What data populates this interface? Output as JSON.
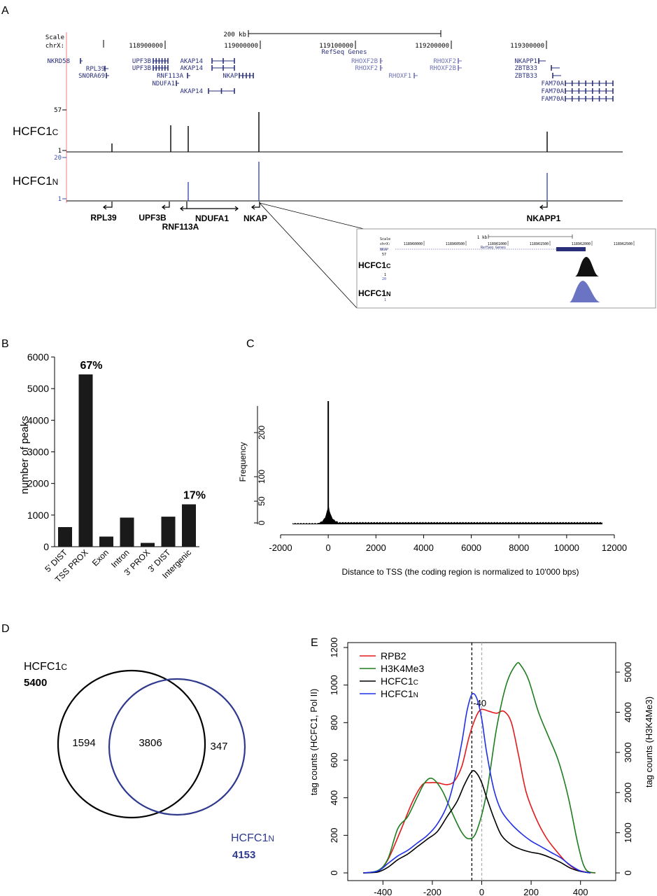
{
  "panels": {
    "a": "A",
    "b": "B",
    "c": "C",
    "d": "D",
    "e": "E"
  },
  "colors": {
    "gene": "#2a2f7a",
    "genelight": "#6f73b5",
    "track_n": "#4050b0",
    "red": "#e31a1c",
    "green": "#1e7d1e",
    "blue": "#1f30e6",
    "venn_n": "#2f3a8f",
    "peak_n": "#6a74c2"
  },
  "a": {
    "scale_label": "Scale",
    "chr_label": "chrX:",
    "scale_bar": "200 kb",
    "coords": [
      "118900000",
      "119000000",
      "119100000",
      "119200000",
      "119300000"
    ],
    "refseq": "RefSeq Genes",
    "genes": [
      {
        "t": "NKRD58"
      },
      {
        "t": "RPL39"
      },
      {
        "t": "SNORA69"
      },
      {
        "t": "UPF3B"
      },
      {
        "t": "UPF3B"
      },
      {
        "t": "AKAP14"
      },
      {
        "t": "AKAP14"
      },
      {
        "t": "RNF113A"
      },
      {
        "t": "NKAP"
      },
      {
        "t": "NDUFA1"
      },
      {
        "t": "AKAP14"
      },
      {
        "t": "RHOXF2B"
      },
      {
        "t": "RHOXF2"
      },
      {
        "t": "RHOXF1"
      },
      {
        "t": "RHOXF2"
      },
      {
        "t": "RHOXF2B"
      },
      {
        "t": "NKAPP1"
      },
      {
        "t": "ZBTB33"
      },
      {
        "t": "ZBTB33"
      },
      {
        "t": "FAM70A"
      },
      {
        "t": "FAM70A"
      },
      {
        "t": "FAM70A"
      }
    ],
    "track_c": {
      "name": "HCFC1",
      "sub": "C",
      "max": "57",
      "min": "1"
    },
    "track_n": {
      "name": "HCFC1",
      "sub": "N",
      "max": "20",
      "min": "1"
    },
    "bottom_genes": [
      "RPL39",
      "UPF3B",
      "RNF113A",
      "NDUFA1",
      "NKAP",
      "NKAPP1"
    ],
    "inset": {
      "scale": "Scale",
      "chr": "chrX:",
      "bar": "1 kb",
      "coords": [
        "118960000",
        "118960500",
        "118961000",
        "118961500",
        "118962000",
        "118962500"
      ],
      "refseq": "RefSeq Genes",
      "gene": "NKAP",
      "max_c": "57",
      "min_c": "1",
      "max_n": "20",
      "min_n": "1",
      "track_c": {
        "name": "HCFC1",
        "sub": "C"
      },
      "track_n": {
        "name": "HCFC1",
        "sub": "N"
      }
    }
  },
  "chart_data": [
    {
      "panel": "B",
      "type": "bar",
      "categories": [
        "5' DIST",
        "TSS PROX",
        "Exon",
        "Intron",
        "3' PROX",
        "3' DIST",
        "Intergenic"
      ],
      "values": [
        620,
        5450,
        320,
        920,
        120,
        950,
        1340
      ],
      "ylabel": "number of peaks",
      "ylim": [
        0,
        6000
      ],
      "yticks": [
        "0",
        "1000",
        "2000",
        "3000",
        "4000",
        "5000",
        "6000"
      ],
      "annotations": [
        {
          "category": "TSS PROX",
          "text": "67%"
        },
        {
          "category": "Intergenic",
          "text": "17%"
        }
      ]
    },
    {
      "panel": "C",
      "type": "bar",
      "xlabel": "Distance to TSS (the coding region is normalized to 10'000 bps)",
      "ylabel": "Frequency",
      "xticks": [
        "-2000",
        "0",
        "2000",
        "4000",
        "6000",
        "8000",
        "10000",
        "12000"
      ],
      "yticks": [
        "0",
        "50",
        "100",
        "200"
      ],
      "xlim": [
        -2000,
        12000
      ],
      "ylim": [
        0,
        260
      ],
      "peak": {
        "x": 0,
        "y": 260
      },
      "baseline": 3
    },
    {
      "panel": "D",
      "type": "venn",
      "sets": [
        {
          "name": "HCFC1",
          "sub": "C",
          "total": "5400"
        },
        {
          "name": "HCFC1",
          "sub": "N",
          "total": "4153"
        }
      ],
      "regions": {
        "only_c": "1594",
        "both": "3806",
        "only_n": "347"
      }
    },
    {
      "panel": "E",
      "type": "line",
      "xticks": [
        "-400",
        "-200",
        "0",
        "200",
        "400"
      ],
      "ylabel_left": "tag counts (HCFC1, Pol II)",
      "ylabel_right": "tag counts (H3K4Me3)",
      "yticks_left": [
        "0",
        "200",
        "400",
        "600",
        "800",
        "1000",
        "1200"
      ],
      "yticks_right": [
        "0",
        "1000",
        "2000",
        "3000",
        "4000",
        "5000"
      ],
      "xlim": [
        -500,
        500
      ],
      "ylim_left": [
        0,
        1200
      ],
      "ylim_right": [
        0,
        5500
      ],
      "marker_label": "-40",
      "series": [
        {
          "name": "RPB2",
          "x": [
            -480,
            -420,
            -380,
            -330,
            -280,
            -240,
            -210,
            -180,
            -140,
            -110,
            -80,
            -50,
            -20,
            0,
            30,
            60,
            90,
            120,
            150,
            180,
            220,
            260,
            300,
            340,
            380,
            420,
            460
          ],
          "y": [
            0,
            10,
            70,
            220,
            380,
            470,
            480,
            480,
            470,
            490,
            570,
            730,
            840,
            870,
            860,
            850,
            860,
            800,
            620,
            430,
            290,
            190,
            120,
            60,
            20,
            5,
            0
          ]
        },
        {
          "name": "H3K4Me3",
          "x": [
            -480,
            -420,
            -380,
            -340,
            -300,
            -260,
            -230,
            -200,
            -160,
            -120,
            -80,
            -50,
            -20,
            20,
            60,
            100,
            140,
            160,
            190,
            230,
            270,
            310,
            350,
            390,
            420,
            460
          ],
          "y": [
            0,
            60,
            350,
            1100,
            1400,
            1900,
            2250,
            2350,
            2050,
            1500,
            1000,
            850,
            1050,
            2000,
            3600,
            4700,
            5200,
            5150,
            4800,
            4000,
            3400,
            2800,
            1900,
            700,
            100,
            0
          ]
        },
        {
          "name": "HCFC1C",
          "label": "HCFC1",
          "sub": "C",
          "x": [
            -480,
            -420,
            -380,
            -340,
            -300,
            -260,
            -220,
            -180,
            -140,
            -100,
            -70,
            -40,
            -20,
            0,
            20,
            50,
            80,
            120,
            160,
            200,
            240,
            280,
            320,
            360,
            400,
            440
          ],
          "y": [
            0,
            5,
            30,
            70,
            100,
            140,
            180,
            220,
            300,
            380,
            470,
            540,
            530,
            480,
            400,
            290,
            200,
            150,
            125,
            110,
            100,
            80,
            55,
            25,
            8,
            0
          ]
        },
        {
          "name": "HCFC1N",
          "label": "HCFC1",
          "sub": "N",
          "x": [
            -480,
            -420,
            -380,
            -340,
            -300,
            -260,
            -220,
            -180,
            -140,
            -110,
            -80,
            -60,
            -40,
            -20,
            0,
            20,
            50,
            80,
            120,
            160,
            200,
            240,
            280,
            320,
            360,
            400,
            440
          ],
          "y": [
            0,
            10,
            50,
            90,
            120,
            160,
            200,
            260,
            360,
            500,
            700,
            860,
            950,
            930,
            820,
            640,
            440,
            330,
            260,
            210,
            170,
            140,
            110,
            80,
            40,
            10,
            0
          ]
        }
      ]
    }
  ]
}
